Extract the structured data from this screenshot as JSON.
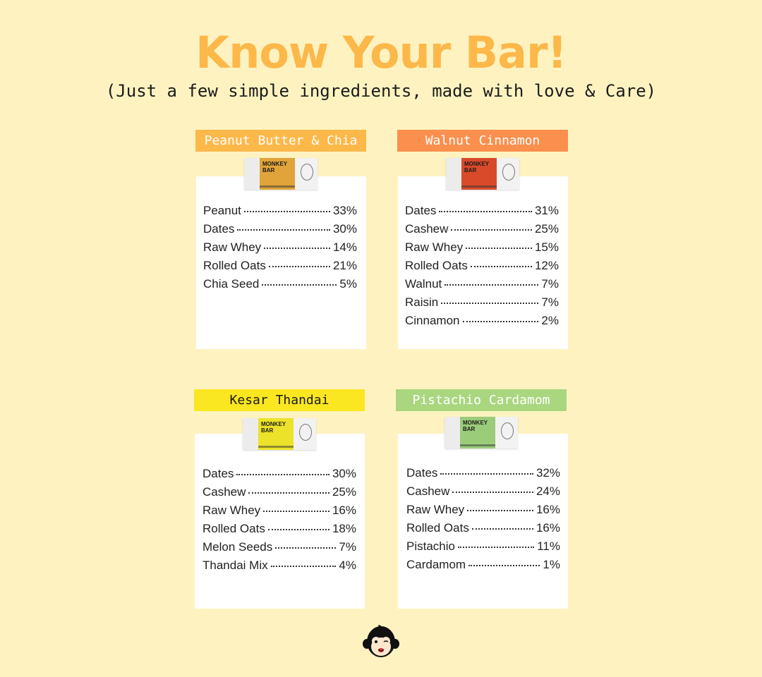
{
  "header": {
    "title": "Know Your Bar!",
    "subtitle": "(Just a few simple ingredients, made with love & Care)"
  },
  "pack_brand": "MONKEY BAR",
  "bars": [
    {
      "label": "Peanut Butter & Chia",
      "color": "#fdb84a",
      "pack_color": "#e0a43a",
      "ingredients": [
        {
          "name": "Peanut",
          "pct": "33%"
        },
        {
          "name": "Dates",
          "pct": "30%"
        },
        {
          "name": "Raw Whey",
          "pct": "14%"
        },
        {
          "name": "Rolled Oats",
          "pct": "21%"
        },
        {
          "name": "Chia Seed",
          "pct": "5%"
        }
      ]
    },
    {
      "label": "Walnut Cinnamon",
      "color": "#fb8f4e",
      "pack_color": "#d94a2a",
      "ingredients": [
        {
          "name": "Dates",
          "pct": "31%"
        },
        {
          "name": "Cashew",
          "pct": "25%"
        },
        {
          "name": "Raw Whey",
          "pct": "15%"
        },
        {
          "name": "Rolled Oats",
          "pct": "12%"
        },
        {
          "name": "Walnut",
          "pct": "7%"
        },
        {
          "name": "Raisin",
          "pct": "7%"
        },
        {
          "name": "Cinnamon",
          "pct": "2%"
        }
      ]
    },
    {
      "label": "Kesar Thandai",
      "color": "#fbe622",
      "pack_color": "#ece22a",
      "ingredients": [
        {
          "name": "Dates",
          "pct": "30%"
        },
        {
          "name": "Cashew",
          "pct": "25%"
        },
        {
          "name": "Raw Whey",
          "pct": "16%"
        },
        {
          "name": "Rolled Oats",
          "pct": "18%"
        },
        {
          "name": "Melon Seeds",
          "pct": "7%"
        },
        {
          "name": "Thandai Mix",
          "pct": "4%"
        }
      ]
    },
    {
      "label": "Pistachio Cardamom",
      "color": "#a9d67f",
      "pack_color": "#9bcc7a",
      "ingredients": [
        {
          "name": "Dates",
          "pct": "32%"
        },
        {
          "name": "Cashew",
          "pct": "24%"
        },
        {
          "name": "Raw Whey",
          "pct": "16%"
        },
        {
          "name": "Rolled Oats",
          "pct": "16%"
        },
        {
          "name": "Pistachio",
          "pct": "11%"
        },
        {
          "name": "Cardamom",
          "pct": "1%"
        }
      ]
    }
  ]
}
